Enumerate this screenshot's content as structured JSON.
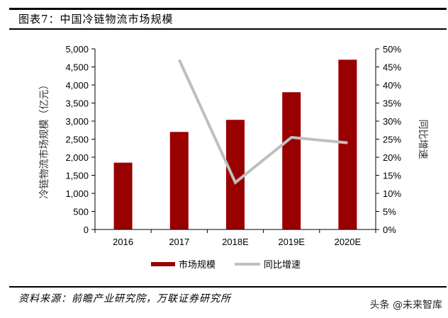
{
  "header": {
    "title": "图表7：中国冷链物流市场规模"
  },
  "footer": {
    "source": "资料来源：前瞻产业研究院，万联证券研究所",
    "watermark": "头条 @未来智库"
  },
  "colors": {
    "bar": "#990000",
    "line": "#BFBFBF",
    "axis": "#000000"
  },
  "chart_data": {
    "type": "bar",
    "title": "中国冷链物流市场规模",
    "categories": [
      "2016",
      "2017",
      "2018E",
      "2019E",
      "2020E"
    ],
    "series": [
      {
        "name": "市场规模",
        "type": "bar",
        "axis": "left",
        "values": [
          1850,
          2700,
          3035,
          3800,
          4700
        ]
      },
      {
        "name": "同比增速",
        "type": "line",
        "axis": "right",
        "values": [
          null,
          47.0,
          13.0,
          25.5,
          24.0
        ]
      }
    ],
    "xlabel": "",
    "ylabel": "冷链物流市场规模（亿元）",
    "y2label": "同比增速",
    "ylim": [
      0,
      5000
    ],
    "y2lim": [
      0,
      50
    ],
    "yticks": [
      "0",
      "500",
      "1,000",
      "1,500",
      "2,000",
      "2,500",
      "3,000",
      "3,500",
      "4,000",
      "4,500",
      "5,000"
    ],
    "y2ticks": [
      "0%",
      "5%",
      "10%",
      "15%",
      "20%",
      "25%",
      "30%",
      "35%",
      "40%",
      "45%",
      "50%"
    ],
    "grid": false,
    "legend": {
      "position": "bottom",
      "entries": [
        "市场规模",
        "同比增速"
      ]
    }
  }
}
